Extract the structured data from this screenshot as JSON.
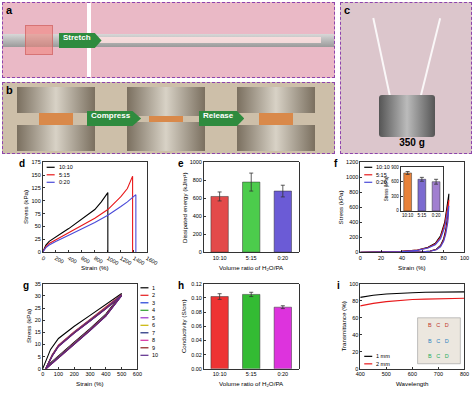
{
  "photo_panels": [
    {
      "label": "a",
      "texts": [
        "Stretch"
      ]
    },
    {
      "label": "b",
      "texts": [
        "Compress",
        "Release"
      ]
    },
    {
      "label": "c",
      "texts": [
        "350 g"
      ]
    }
  ],
  "chart_data": [
    {
      "label": "d",
      "type": "line",
      "x_label": "Strain (%)",
      "y_label": "Stress (kPa)",
      "xlim": [
        0,
        1600
      ],
      "xticks": [
        0,
        200,
        400,
        600,
        800,
        1000,
        1200,
        1400,
        1600
      ],
      "ylim": [
        0,
        175
      ],
      "yticks": [
        0,
        25,
        50,
        75,
        100,
        125,
        150,
        175
      ],
      "legend": "upper left",
      "series": [
        {
          "name": "10:10",
          "color": "#000000",
          "x": [
            0,
            50,
            100,
            200,
            300,
            400,
            500,
            600,
            700,
            800,
            900,
            1000,
            1000
          ],
          "values": [
            0,
            14,
            21,
            30,
            38,
            46,
            55,
            64,
            73,
            83,
            98,
            116,
            0
          ]
        },
        {
          "name": "5:15",
          "color": "#e8191b",
          "x": [
            0,
            50,
            100,
            200,
            400,
            600,
            800,
            1000,
            1100,
            1200,
            1300,
            1380,
            1380
          ],
          "values": [
            0,
            11,
            17,
            24,
            37,
            51,
            66,
            83,
            95,
            108,
            124,
            148,
            0
          ]
        },
        {
          "name": "0:20",
          "color": "#4a4ad8",
          "x": [
            0,
            50,
            100,
            200,
            400,
            600,
            800,
            1000,
            1100,
            1200,
            1300,
            1430,
            1430
          ],
          "values": [
            0,
            9,
            14,
            21,
            33,
            45,
            58,
            72,
            80,
            89,
            98,
            112,
            0
          ]
        }
      ]
    },
    {
      "label": "e",
      "type": "bar",
      "x_label": "Volume ratio of H₂O/PA",
      "y_label": "Dissipated energy (kJ/m³)",
      "categories": [
        "10:10",
        "5:15",
        "0:20"
      ],
      "values": [
        620,
        780,
        680
      ],
      "errors": [
        50,
        100,
        65
      ],
      "colors": [
        "#e34a4a",
        "#4ccc4c",
        "#6b5bd6"
      ],
      "ylim": [
        0,
        1000
      ],
      "yticks": [
        0,
        200,
        400,
        600,
        800,
        1000
      ]
    },
    {
      "label": "f",
      "type": "line",
      "x_label": "Strain (%)",
      "y_label": "Stress (kPa)",
      "xlim": [
        0,
        100
      ],
      "xticks": [
        0,
        20,
        40,
        60,
        80,
        100
      ],
      "ylim": [
        0,
        1200
      ],
      "yticks": [
        0,
        200,
        400,
        600,
        800,
        1000,
        1200
      ],
      "legend": "upper left",
      "series": [
        {
          "name": "10:10",
          "color": "#000000",
          "x": [
            0,
            20,
            40,
            55,
            65,
            72,
            77,
            81,
            84,
            85,
            84,
            82,
            80,
            77,
            73,
            67,
            60,
            50,
            40
          ],
          "values": [
            0,
            4,
            12,
            30,
            65,
            120,
            220,
            400,
            650,
            780,
            500,
            300,
            180,
            90,
            40,
            15,
            5,
            1,
            0
          ]
        },
        {
          "name": "5:15",
          "color": "#e8191b",
          "x": [
            0,
            20,
            40,
            55,
            65,
            72,
            77,
            81,
            84,
            85,
            84,
            82,
            80,
            77,
            73,
            67,
            60,
            50,
            40
          ],
          "values": [
            0,
            4,
            11,
            28,
            60,
            110,
            200,
            370,
            590,
            700,
            450,
            270,
            160,
            80,
            35,
            13,
            4,
            1,
            0
          ]
        },
        {
          "name": "0:20",
          "color": "#4a4ad8",
          "x": [
            0,
            20,
            40,
            55,
            65,
            72,
            77,
            81,
            84,
            85,
            84,
            82,
            80,
            77,
            73,
            67,
            60,
            50,
            40
          ],
          "values": [
            0,
            3,
            10,
            25,
            55,
            100,
            180,
            330,
            520,
            620,
            400,
            240,
            145,
            72,
            32,
            12,
            4,
            1,
            0
          ]
        }
      ]
    },
    {
      "type": "bar",
      "y_label": "Stress (kPa)",
      "categories": [
        "10:10",
        "5:15",
        "0:20"
      ],
      "values": [
        780,
        650,
        600
      ],
      "errors": [
        30,
        40,
        50
      ],
      "colors": [
        "#e8823a",
        "#7b6ad0",
        "#a17fd0"
      ],
      "ylim": [
        0,
        900
      ],
      "yticks": [
        0,
        300,
        600,
        900
      ]
    },
    {
      "label": "g",
      "type": "line",
      "x_label": "Strain (%)",
      "y_label": "Stress (kPa)",
      "xlim": [
        0,
        600
      ],
      "xticks": [
        0,
        100,
        200,
        300,
        400,
        500,
        600
      ],
      "ylim": [
        0,
        35
      ],
      "yticks": [
        0,
        5,
        10,
        15,
        20,
        25,
        30,
        35
      ],
      "legend": "right",
      "series": [
        {
          "name": "1",
          "color": "#000000",
          "x": [
            0,
            50,
            100,
            200,
            300,
            400,
            500,
            400,
            300,
            200,
            100,
            50,
            20
          ],
          "values": [
            0,
            8,
            12.5,
            17.5,
            22,
            26.5,
            31,
            22.5,
            16.5,
            11,
            5.5,
            2.5,
            0
          ]
        },
        {
          "name": "2",
          "color": "#e41a1c",
          "x": [
            20,
            60,
            100,
            200,
            300,
            400,
            500,
            400,
            300,
            200,
            100,
            50,
            20
          ],
          "values": [
            0,
            5.8,
            9.8,
            15.3,
            20.3,
            25.3,
            30.6,
            22.2,
            16.2,
            10.7,
            5.2,
            2.2,
            0
          ]
        },
        {
          "name": "3",
          "color": "#1f3fd6",
          "x": [
            20,
            60,
            100,
            200,
            300,
            400,
            500,
            400,
            300,
            200,
            100,
            50,
            20
          ],
          "values": [
            0,
            5.6,
            9.6,
            15.1,
            20.1,
            25.1,
            30.5,
            22.1,
            16.1,
            10.6,
            5.1,
            2.1,
            0
          ]
        },
        {
          "name": "4",
          "color": "#2ca02c",
          "x": [
            20,
            60,
            100,
            200,
            300,
            400,
            500,
            400,
            300,
            200,
            100,
            50,
            20
          ],
          "values": [
            0,
            5.5,
            9.5,
            15,
            20,
            25,
            30.4,
            22,
            16,
            10.5,
            5,
            2,
            0
          ]
        },
        {
          "name": "5",
          "color": "#9b30c8",
          "x": [
            20,
            60,
            100,
            200,
            300,
            400,
            500,
            400,
            300,
            200,
            100,
            50,
            20
          ],
          "values": [
            0,
            5.5,
            9.5,
            15,
            20,
            25,
            30.4,
            22,
            16,
            10.5,
            5,
            2,
            0
          ]
        },
        {
          "name": "6",
          "color": "#c8b400",
          "x": [
            20,
            60,
            100,
            200,
            300,
            400,
            500,
            400,
            300,
            200,
            100,
            50,
            20
          ],
          "values": [
            0,
            5.4,
            9.4,
            14.9,
            19.9,
            24.9,
            30.3,
            21.9,
            15.9,
            10.4,
            4.9,
            2,
            0
          ]
        },
        {
          "name": "7",
          "color": "#1b2a7a",
          "x": [
            20,
            60,
            100,
            200,
            300,
            400,
            500,
            400,
            300,
            200,
            100,
            50,
            20
          ],
          "values": [
            0,
            5.4,
            9.4,
            14.9,
            19.9,
            24.9,
            30.3,
            21.9,
            15.9,
            10.4,
            4.9,
            2,
            0
          ]
        },
        {
          "name": "8",
          "color": "#d62aa0",
          "x": [
            20,
            60,
            100,
            200,
            300,
            400,
            500,
            400,
            300,
            200,
            100,
            50,
            20
          ],
          "values": [
            0,
            5.3,
            9.3,
            14.8,
            19.8,
            24.8,
            30.2,
            21.8,
            15.8,
            10.3,
            4.8,
            1.9,
            0
          ]
        },
        {
          "name": "9",
          "color": "#8b1a1a",
          "x": [
            20,
            60,
            100,
            200,
            300,
            400,
            500,
            400,
            300,
            200,
            100,
            50,
            20
          ],
          "values": [
            0,
            5.3,
            9.3,
            14.8,
            19.8,
            24.8,
            30.2,
            21.8,
            15.8,
            10.3,
            4.8,
            1.9,
            0
          ]
        },
        {
          "name": "10",
          "color": "#5a2a8a",
          "x": [
            20,
            60,
            100,
            200,
            300,
            400,
            500,
            400,
            300,
            200,
            100,
            50,
            20
          ],
          "values": [
            0,
            5.2,
            9.2,
            14.7,
            19.7,
            24.7,
            30.1,
            21.7,
            15.7,
            10.2,
            4.7,
            1.8,
            0
          ]
        }
      ]
    },
    {
      "label": "h",
      "type": "bar",
      "x_label": "Volume ratio of H₂O/PA",
      "y_label": "Conductivity (S/cm)",
      "categories": [
        "10:10",
        "5:15",
        "0:20"
      ],
      "values": [
        0.102,
        0.105,
        0.087
      ],
      "errors": [
        0.004,
        0.003,
        0.002
      ],
      "colors": [
        "#ee3333",
        "#33bb33",
        "#dd33dd"
      ],
      "ylim": [
        0,
        0.12
      ],
      "yticks": [
        {
          "value": 0,
          "label": "0.00"
        },
        0.02,
        0.04,
        0.06,
        0.08,
        {
          "value": 0.1,
          "label": "0.10"
        },
        0.12
      ]
    },
    {
      "label": "i",
      "type": "line",
      "x_label": "Wavelength",
      "y_label": "Transmittance (%)",
      "xlim": [
        400,
        800
      ],
      "xticks": [
        400,
        500,
        600,
        700,
        800
      ],
      "ylim": [
        0,
        100
      ],
      "yticks": [
        0,
        20,
        40,
        60,
        80,
        100
      ],
      "legend": "lower left",
      "annotations": [
        "B   C   D",
        "B   C   D",
        "B   C   D"
      ],
      "series": [
        {
          "name": "1 mm",
          "color": "#000000",
          "x": [
            400,
            450,
            500,
            550,
            600,
            650,
            700,
            750,
            800
          ],
          "values": [
            84,
            86.5,
            88,
            89,
            89.5,
            90,
            90,
            90.5,
            90.5
          ]
        },
        {
          "name": "2 mm",
          "color": "#e8191b",
          "x": [
            400,
            450,
            500,
            550,
            600,
            650,
            700,
            750,
            800
          ],
          "values": [
            74,
            77,
            79,
            80.5,
            81.5,
            82,
            82.5,
            83,
            83
          ]
        }
      ]
    }
  ]
}
